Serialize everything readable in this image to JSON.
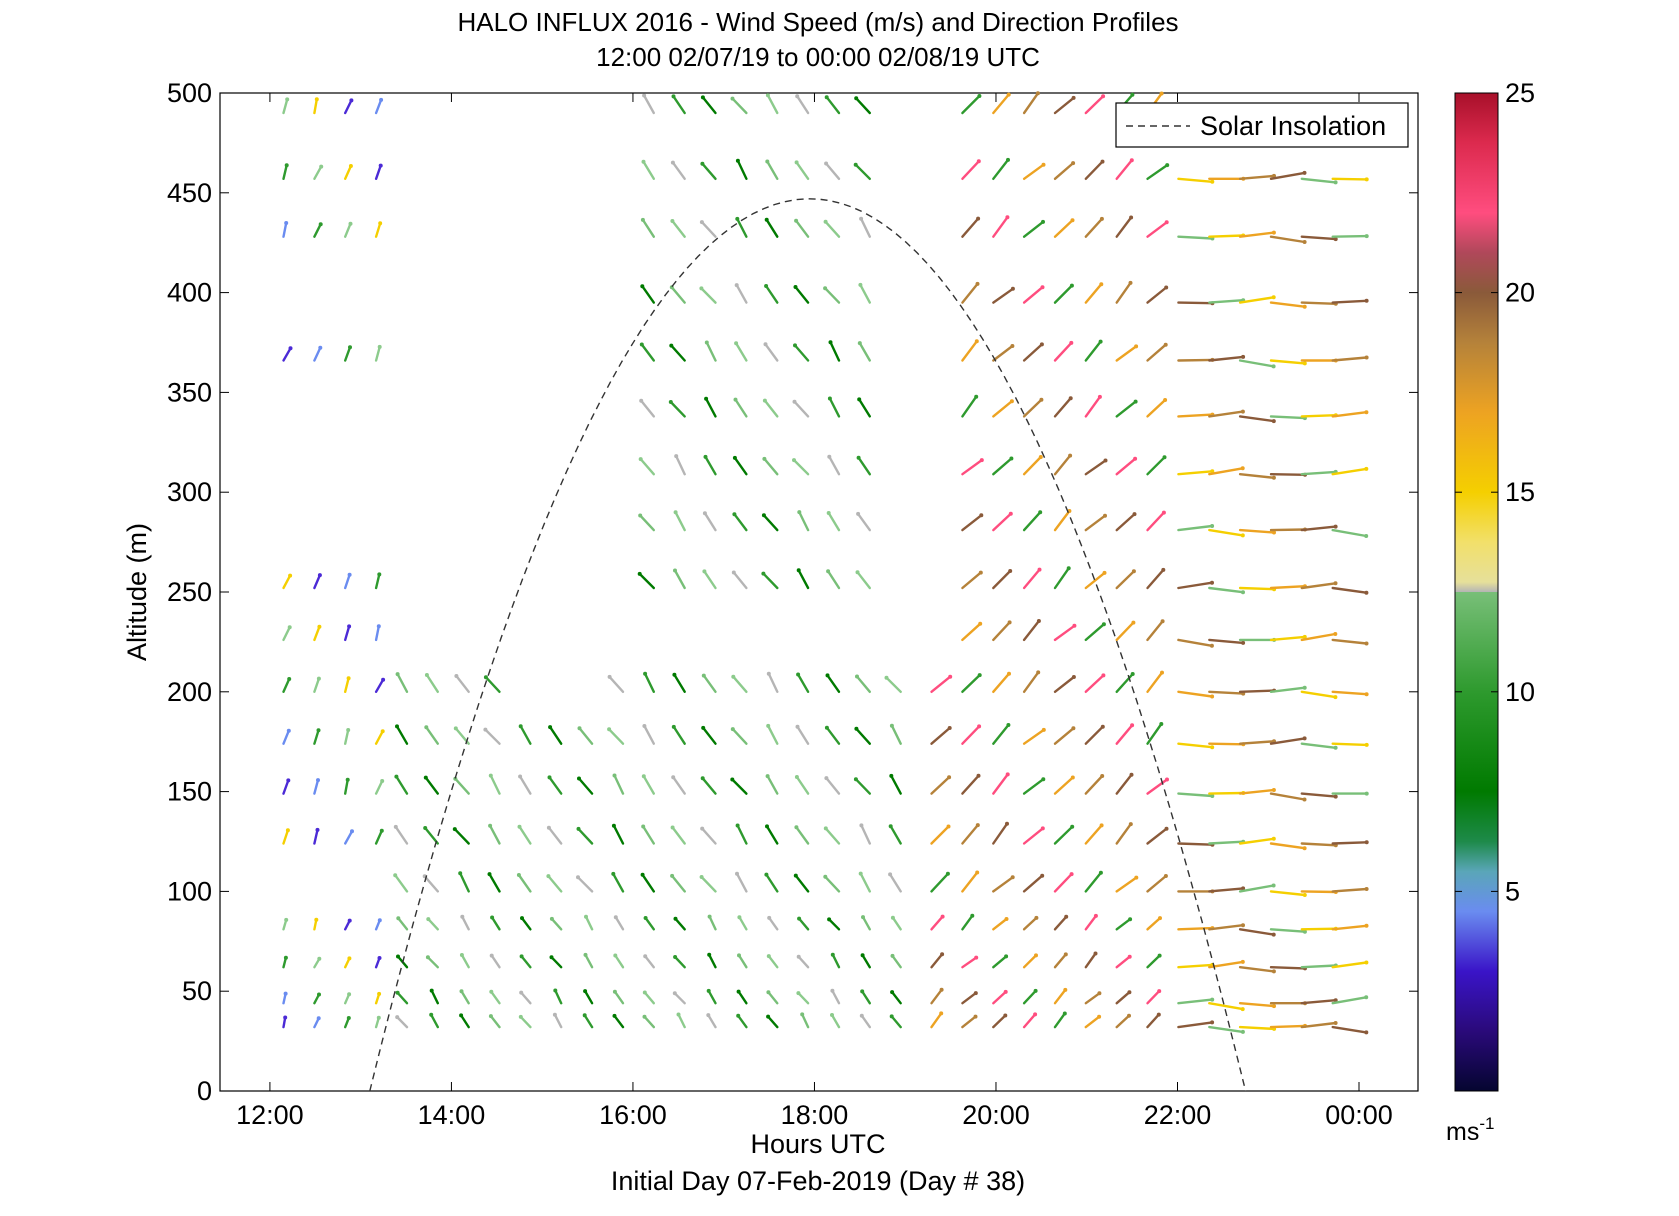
{
  "chart_data": {
    "type": "quiver",
    "title": "HALO INFLUX 2016 - Wind Speed (m/s) and Direction Profiles",
    "subtitle": "12:00 02/07/19 to 00:00 02/08/19  UTC",
    "xlabel": "Hours UTC",
    "ylabel": "Altitude (m)",
    "footer": "Initial Day 07-Feb-2019 (Day # 38)",
    "xlim": [
      11.45,
      24.65
    ],
    "ylim": [
      0,
      500
    ],
    "x_ticks": [
      "12:00",
      "14:00",
      "16:00",
      "18:00",
      "20:00",
      "22:00",
      "00:00"
    ],
    "x_tick_values": [
      12,
      14,
      16,
      18,
      20,
      22,
      24
    ],
    "y_ticks": [
      "0",
      "50",
      "100",
      "150",
      "200",
      "250",
      "300",
      "350",
      "400",
      "450",
      "500"
    ],
    "legend": {
      "label": "Solar Insolation",
      "position": "top-right"
    },
    "colorbar": {
      "range": [
        0,
        25
      ],
      "ticks": [
        "5",
        "10",
        "15",
        "20",
        "25"
      ],
      "unit": "ms",
      "unit_exponent": "-1"
    },
    "solar_insolation_curve": {
      "start_hour": 13.1,
      "peak_hour": 17.95,
      "end_hour": 22.75,
      "peak_altitude": 447
    },
    "altitudes_m": [
      32,
      44,
      62,
      81,
      100,
      124,
      149,
      174,
      200,
      226,
      252,
      281,
      309,
      338,
      366,
      395,
      428,
      457,
      490
    ],
    "wind_samples": [
      {
        "hour": 12.15,
        "regime": "light-north",
        "levels": [
          32,
          44,
          62,
          81,
          124,
          149,
          174,
          200,
          226,
          252,
          366,
          428,
          457,
          490
        ]
      },
      {
        "hour": 14.5,
        "regime": "moderate-northwest",
        "levels": [
          32,
          44,
          62,
          81,
          100,
          124,
          149,
          174,
          200
        ]
      },
      {
        "hour": 17.5,
        "regime": "moderate-northwest",
        "levels": [
          32,
          44,
          62,
          81,
          100,
          124,
          149,
          174,
          200,
          252,
          281,
          309,
          338,
          366,
          395,
          428,
          457,
          490
        ]
      },
      {
        "hour": 20.5,
        "regime": "strong-southwest",
        "levels": [
          32,
          44,
          62,
          81,
          100,
          124,
          149,
          174,
          200,
          226,
          252,
          281,
          309,
          338,
          366,
          395,
          428,
          457,
          490
        ]
      },
      {
        "hour": 23.0,
        "regime": "strong-westerly",
        "levels": [
          32,
          44,
          62,
          81,
          100,
          124,
          149,
          174,
          200,
          226,
          252,
          281,
          309,
          338,
          366,
          395,
          428,
          457
        ]
      }
    ]
  }
}
